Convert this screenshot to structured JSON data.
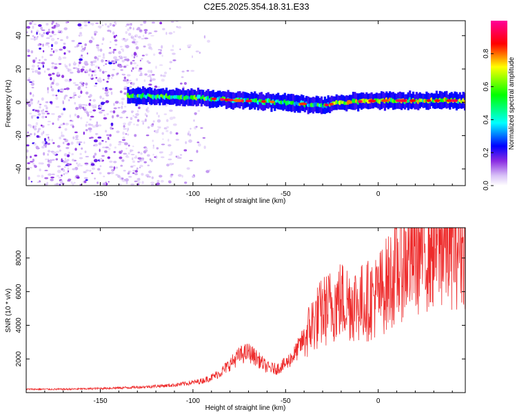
{
  "figure_title": "C2E5.2025.354.18.31.E33",
  "colors": {
    "snr_line": "#ee2b2b",
    "frame": "#000000",
    "spectrum_ramp": [
      "#ffffff",
      "#c9a6f5",
      "#8a2be2",
      "#0000ff",
      "#00ffff",
      "#00ff00",
      "#ffff00",
      "#ff0000",
      "#ff00aa"
    ]
  },
  "chart_data": [
    {
      "type": "heatmap",
      "xlabel": "Height of straight line (km)",
      "ylabel": "Frequency (Hz)",
      "xlim": [
        -190,
        47
      ],
      "ylim": [
        -50,
        49
      ],
      "xticks": [
        -150,
        -100,
        -50,
        0
      ],
      "xtick_labels": [
        "-150",
        "-100",
        "-50",
        "0"
      ],
      "yticks": [
        -40,
        -20,
        0,
        20,
        40
      ],
      "ytick_labels": [
        "-40",
        "-20",
        "0",
        "20",
        "40"
      ],
      "colorbar": {
        "label": "Normalized spectral amplitude",
        "range": [
          0,
          1
        ],
        "ticks": [
          0,
          0.2,
          0.4,
          0.6,
          0.8
        ],
        "tick_labels": [
          "0.0",
          "0.2",
          "0.4",
          "0.6",
          "0.8"
        ]
      },
      "noise_region": {
        "x_from": -190,
        "x_to": -95,
        "amplitude": 0.2
      },
      "band": {
        "x_from": -135,
        "x_to": 47,
        "center_hz": [
          [
            -135,
            4
          ],
          [
            -100,
            3
          ],
          [
            -75,
            1
          ],
          [
            -50,
            0
          ],
          [
            -30,
            -2
          ],
          [
            -20,
            0
          ],
          [
            0,
            1
          ],
          [
            47,
            1
          ]
        ],
        "width_hz": 8
      }
    },
    {
      "type": "line",
      "xlabel": "Height of straight line (km)",
      "ylabel": "SNR (10 * v/v)",
      "xlim": [
        -190,
        47
      ],
      "ylim": [
        0,
        9800
      ],
      "xticks": [
        -150,
        -100,
        -50,
        0
      ],
      "xtick_labels": [
        "-150",
        "-100",
        "-50",
        "0"
      ],
      "yticks": [
        2000,
        4000,
        6000,
        8000
      ],
      "ytick_labels": [
        "2000",
        "4000",
        "6000",
        "8000"
      ],
      "series": [
        {
          "name": "SNR",
          "x": [
            -190,
            -180,
            -170,
            -160,
            -150,
            -140,
            -130,
            -120,
            -110,
            -100,
            -95,
            -90,
            -85,
            -80,
            -75,
            -70,
            -65,
            -60,
            -55,
            -50,
            -45,
            -40,
            -35,
            -30,
            -25,
            -20,
            -15,
            -10,
            -5,
            0,
            5,
            10,
            15,
            20,
            25,
            30,
            35,
            40,
            47
          ],
          "values": [
            200,
            200,
            200,
            220,
            250,
            280,
            320,
            380,
            450,
            600,
            700,
            900,
            1200,
            1700,
            2200,
            2400,
            2000,
            1500,
            1400,
            1700,
            2300,
            3200,
            4200,
            4800,
            5200,
            5500,
            5400,
            5300,
            5500,
            5800,
            6500,
            7300,
            7900,
            8200,
            8500,
            8700,
            8800,
            8900,
            9000
          ]
        }
      ]
    }
  ]
}
